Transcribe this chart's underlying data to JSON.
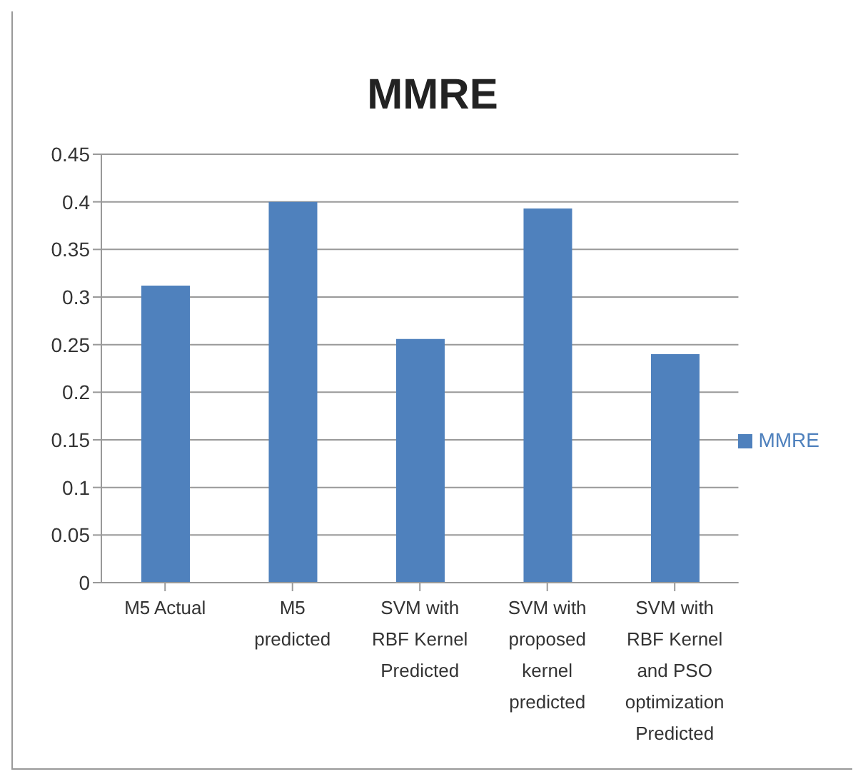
{
  "chart_data": {
    "type": "bar",
    "title": "MMRE",
    "categories": [
      "M5 Actual",
      "M5 predicted",
      "SVM with RBF Kernel Predicted",
      "SVM with proposed kernel predicted",
      "SVM with RBF Kernel and PSO optimization Predicted"
    ],
    "series": [
      {
        "name": "MMRE",
        "color": "#4f81bd",
        "values": [
          0.312,
          0.4,
          0.256,
          0.393,
          0.24
        ]
      }
    ],
    "ylim": [
      0,
      0.45
    ],
    "yticks": [
      0,
      0.05,
      0.1,
      0.15,
      0.2,
      0.25,
      0.3,
      0.35,
      0.4,
      0.45
    ],
    "grid": "y",
    "legend": "right"
  }
}
